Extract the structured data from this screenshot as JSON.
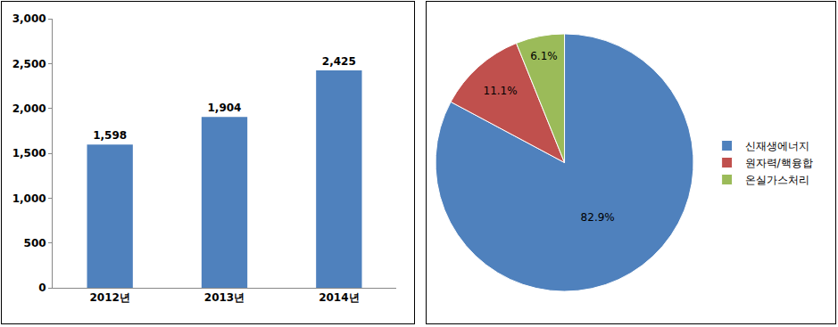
{
  "chart_data": [
    {
      "type": "bar",
      "categories": [
        "2012년",
        "2013년",
        "2014년"
      ],
      "values": [
        1598,
        1904,
        2425
      ],
      "value_labels": [
        "1,598",
        "1,904",
        "2,425"
      ],
      "color": "#4f81bd",
      "ylim": [
        0,
        3000
      ],
      "yticks": [
        0,
        500,
        {
          "value": 1000,
          "label": "1,000"
        },
        {
          "value": 1500,
          "label": "1,500"
        },
        {
          "value": 2000,
          "label": "2,000"
        },
        {
          "value": 2500,
          "label": "2,500"
        },
        {
          "value": 3000,
          "label": "3,000"
        }
      ],
      "grid": false,
      "data_labels": true
    },
    {
      "type": "pie",
      "categories": [
        "신재생에너지",
        "원자력/핵융합",
        "온실가스처리"
      ],
      "values": [
        82.9,
        11.1,
        6.1
      ],
      "value_labels": [
        "82.9%",
        "11.1%",
        "6.1%"
      ],
      "colors": [
        "#4f81bd",
        "#c0504d",
        "#9bbb59"
      ],
      "legend": "right",
      "data_labels": true
    }
  ]
}
